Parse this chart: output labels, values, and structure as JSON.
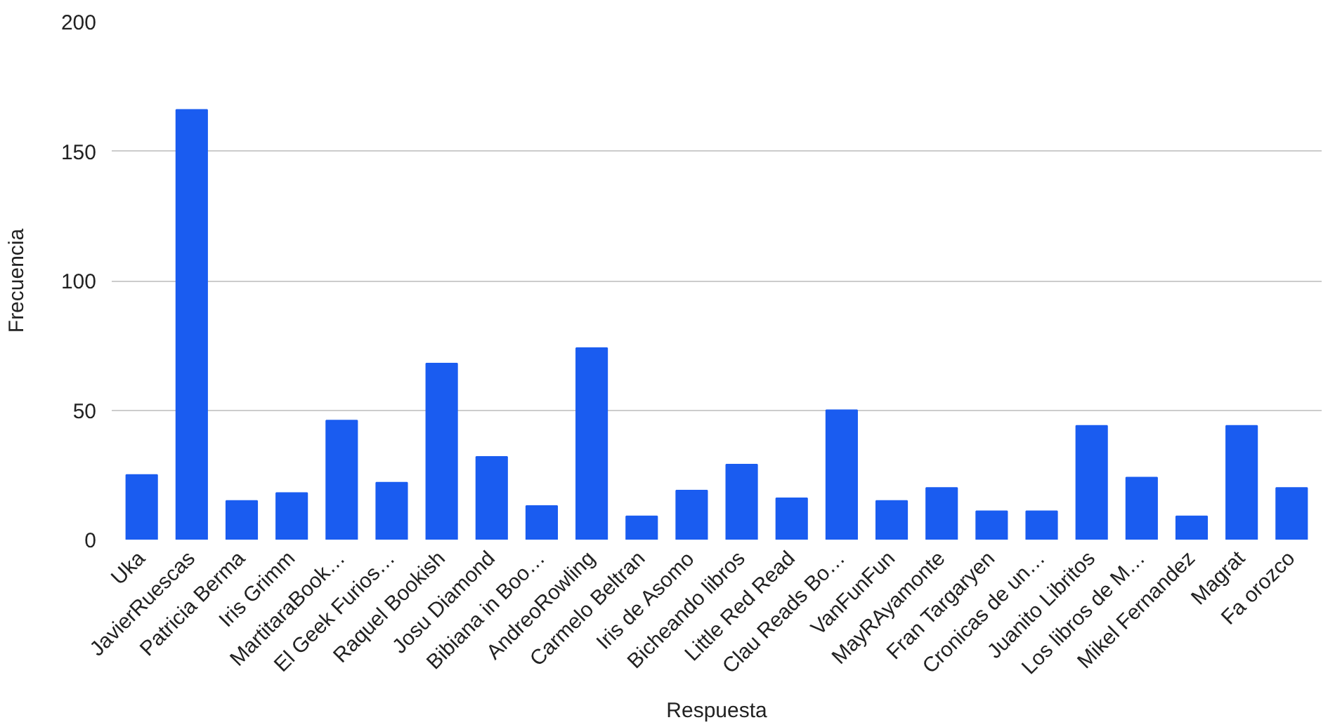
{
  "chart_data": {
    "type": "bar",
    "xlabel": "Respuesta",
    "ylabel": "Frecuencia",
    "categories": [
      "Uka",
      "JavierRuescas",
      "Patricia Berma",
      "Iris Grimm",
      "MartitaraBook…",
      "El Geek Furios…",
      "Raquel Bookish",
      "Josu Diamond",
      "Bibiana in Boo…",
      "AndreoRowling",
      "Carmelo Beltran",
      "Iris de Asomo",
      "Bicheando libros",
      "Little Red Read",
      "Clau Reads Bo…",
      "VanFunFun",
      "MayRAyamonte",
      "Fran Targaryen",
      "Cronicas de un…",
      "Juanito Libritos",
      "Los libros de M…",
      "Mikel Fernandez",
      "Magrat",
      "Fa orozco"
    ],
    "values": [
      25,
      166,
      15,
      18,
      46,
      22,
      68,
      32,
      13,
      74,
      9,
      19,
      29,
      16,
      50,
      15,
      20,
      11,
      11,
      44,
      24,
      9,
      44,
      20
    ],
    "color": "#1a5cf0",
    "ylim": [
      0,
      200
    ],
    "yticks": [
      0,
      50,
      100,
      150,
      200
    ],
    "grid": "y"
  }
}
